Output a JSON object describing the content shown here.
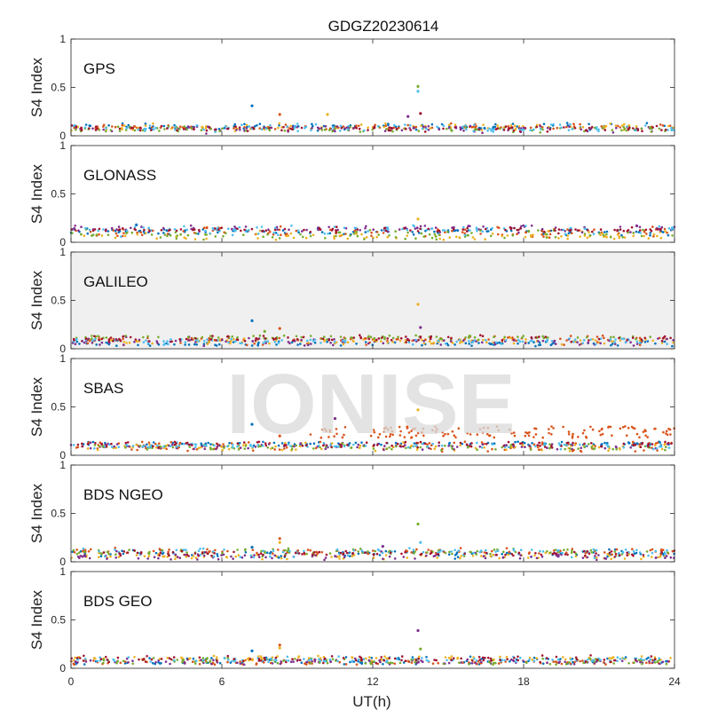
{
  "title": "GDGZ20230614",
  "watermark": "IONISE",
  "colors": [
    "#0072BD",
    "#D95319",
    "#EDB120",
    "#7E2F8E",
    "#77AC30",
    "#4DBEEE",
    "#A2142F"
  ],
  "chart_data": {
    "type": "scatter",
    "title": "GDGZ20230614",
    "xlabel": "UT(h)",
    "xlim": [
      0,
      24
    ],
    "xticks": [
      "0",
      "6",
      "12",
      "18",
      "24"
    ],
    "xtick_values": [
      0,
      6,
      12,
      18,
      24
    ],
    "ylim": [
      0,
      1
    ],
    "yticks": [
      "0",
      "0.5",
      "1"
    ],
    "ytick_values": [
      0,
      0.5,
      1
    ],
    "grid": false,
    "panels": [
      {
        "label": "GPS",
        "ylabel": "S4 Index",
        "background": "#ffffff",
        "baseline": [
          0.03,
          0.12
        ],
        "spikes": [
          {
            "x": 7.2,
            "y": 0.31
          },
          {
            "x": 8.3,
            "y": 0.22
          },
          {
            "x": 10.2,
            "y": 0.22
          },
          {
            "x": 13.4,
            "y": 0.2
          },
          {
            "x": 13.8,
            "y": 0.51
          },
          {
            "x": 13.8,
            "y": 0.46
          },
          {
            "x": 13.9,
            "y": 0.23
          }
        ]
      },
      {
        "label": "GLONASS",
        "ylabel": "S4 Index",
        "background": "#ffffff",
        "baseline": [
          0.04,
          0.16
        ],
        "spikes": [
          {
            "x": 2.6,
            "y": 0.18
          },
          {
            "x": 5.4,
            "y": 0.15
          },
          {
            "x": 13.8,
            "y": 0.24
          },
          {
            "x": 22.5,
            "y": 0.17
          }
        ]
      },
      {
        "label": "GALILEO",
        "ylabel": "S4 Index",
        "background": "#f0f0f0",
        "baseline": [
          0.04,
          0.13
        ],
        "spikes": [
          {
            "x": 7.2,
            "y": 0.29
          },
          {
            "x": 8.3,
            "y": 0.21
          },
          {
            "x": 13.8,
            "y": 0.46
          },
          {
            "x": 13.9,
            "y": 0.22
          },
          {
            "x": 7.7,
            "y": 0.18
          }
        ]
      },
      {
        "label": "SBAS",
        "ylabel": "S4 Index",
        "background": "#ffffff",
        "baseline": [
          0.05,
          0.13
        ],
        "elevated": {
          "from": 9.5,
          "to": 24,
          "y": [
            0.18,
            0.3
          ]
        },
        "spikes": [
          {
            "x": 7.2,
            "y": 0.32
          },
          {
            "x": 8.3,
            "y": 0.2
          },
          {
            "x": 13.8,
            "y": 0.47
          },
          {
            "x": 10.5,
            "y": 0.38
          }
        ]
      },
      {
        "label": "BDS NGEO",
        "ylabel": "S4 Index",
        "background": "#ffffff",
        "baseline": [
          0.03,
          0.13
        ],
        "spikes": [
          {
            "x": 7.2,
            "y": 0.15
          },
          {
            "x": 8.3,
            "y": 0.24
          },
          {
            "x": 8.3,
            "y": 0.2
          },
          {
            "x": 12.4,
            "y": 0.16
          },
          {
            "x": 13.8,
            "y": 0.39
          },
          {
            "x": 13.9,
            "y": 0.2
          }
        ]
      },
      {
        "label": "BDS GEO",
        "ylabel": "S4 Index",
        "background": "#ffffff",
        "baseline": [
          0.05,
          0.13
        ],
        "spikes": [
          {
            "x": 7.2,
            "y": 0.18
          },
          {
            "x": 8.3,
            "y": 0.24
          },
          {
            "x": 8.3,
            "y": 0.21
          },
          {
            "x": 13.8,
            "y": 0.39
          },
          {
            "x": 13.9,
            "y": 0.2
          }
        ]
      }
    ]
  }
}
